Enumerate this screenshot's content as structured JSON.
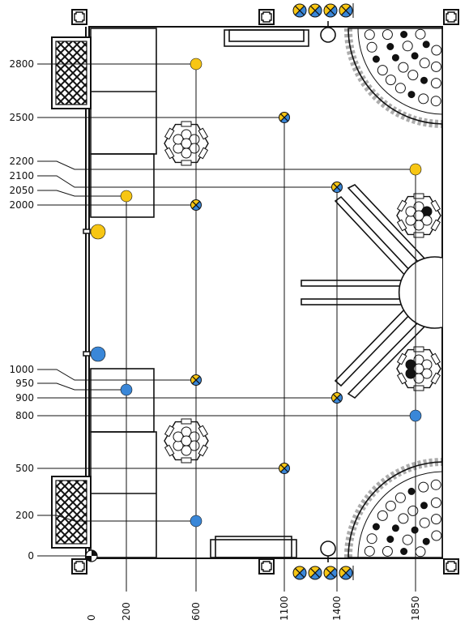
{
  "colors": {
    "yellow": "#f7c614",
    "blue": "#3a87d8",
    "line": "#111111",
    "background": "#ffffff"
  },
  "y_axis": {
    "labels": [
      "2800",
      "2500",
      "2200",
      "2100",
      "2050",
      "2000",
      "1000",
      "950",
      "900",
      "800",
      "500",
      "200",
      "0"
    ]
  },
  "x_axis": {
    "labels": [
      "0",
      "200",
      "600",
      "1100",
      "1400",
      "1850"
    ]
  },
  "markers": [
    {
      "id": "m-2800",
      "x": 600,
      "y": 2800,
      "type": "yellow"
    },
    {
      "id": "m-2500",
      "x": 1100,
      "y": 2500,
      "type": "mixed"
    },
    {
      "id": "m-2200",
      "x": 1850,
      "y": 2200,
      "type": "yellow"
    },
    {
      "id": "m-2100",
      "x": 1400,
      "y": 2100,
      "type": "mixed"
    },
    {
      "id": "m-2050",
      "x": 200,
      "y": 2050,
      "type": "yellow"
    },
    {
      "id": "m-2000",
      "x": 600,
      "y": 2000,
      "type": "mixed"
    },
    {
      "id": "m-1000",
      "x": 600,
      "y": 1000,
      "type": "mixed"
    },
    {
      "id": "m-950",
      "x": 200,
      "y": 950,
      "type": "blue"
    },
    {
      "id": "m-900",
      "x": 1400,
      "y": 900,
      "type": "mixed"
    },
    {
      "id": "m-800",
      "x": 1850,
      "y": 800,
      "type": "blue"
    },
    {
      "id": "m-500",
      "x": 1100,
      "y": 500,
      "type": "mixed"
    },
    {
      "id": "m-200",
      "x": 600,
      "y": 200,
      "type": "blue"
    },
    {
      "id": "m-0",
      "x": 0,
      "y": 0,
      "type": "origin"
    }
  ],
  "icons": [
    "lattice-panel-icon",
    "hexagon-table-icon",
    "corner-seating-icon",
    "mixed-marker-icon",
    "cross-post-icon"
  ]
}
